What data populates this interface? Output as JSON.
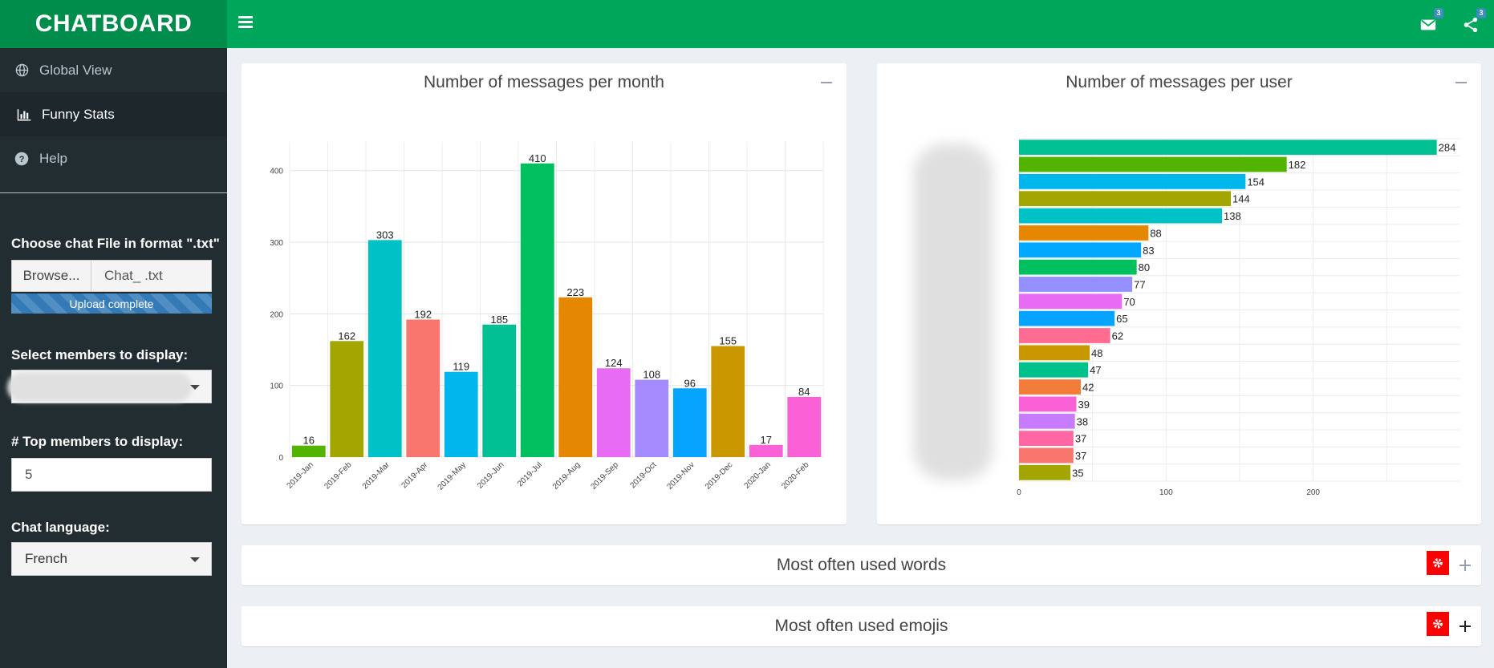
{
  "app": {
    "title": "CHATBOARD"
  },
  "header": {
    "mail_badge": "3",
    "share_badge": "3"
  },
  "sidebar": {
    "items": [
      {
        "label": "Global View",
        "icon": "globe-icon"
      },
      {
        "label": "Funny Stats",
        "icon": "bar-chart-icon"
      },
      {
        "label": "Help",
        "icon": "question-circle-icon"
      }
    ],
    "file_label": "Choose chat File in format \".txt\"",
    "browse_label": "Browse...",
    "file_name": "Chat_       .txt",
    "upload_status": "Upload complete",
    "members_label": "Select members to display:",
    "top_members_label": "# Top members to display:",
    "top_members_value": "5",
    "language_label": "Chat language:",
    "language_value": "French"
  },
  "boxes": {
    "month_title": "Number of messages per month",
    "user_title": "Number of messages per user",
    "words_title": "Most often used words",
    "emojis_title": "Most often used emojis"
  },
  "colors": {
    "header": "#00a65a",
    "logo": "#008d4c",
    "sidebar": "#222d32",
    "gear": "#ff0000"
  },
  "chart_data": [
    {
      "type": "bar",
      "title": "Number of messages per month",
      "categories": [
        "2019-Jan",
        "2019-Feb",
        "2019-Mar",
        "2019-Apr",
        "2019-May",
        "2019-Jun",
        "2019-Jul",
        "2019-Aug",
        "2019-Sep",
        "2019-Oct",
        "2019-Nov",
        "2019-Dec",
        "2020-Jan",
        "2020-Feb"
      ],
      "values": [
        16,
        162,
        303,
        192,
        119,
        185,
        410,
        223,
        124,
        108,
        96,
        155,
        17,
        84
      ],
      "colors": [
        "#53b400",
        "#a3a500",
        "#00c1c6",
        "#f8766d",
        "#00b6eb",
        "#00c094",
        "#00bf5e",
        "#e58700",
        "#e76bf3",
        "#a58aff",
        "#06a4ff",
        "#c99800",
        "#fb61d7",
        "#fb61d7"
      ],
      "yticks": [
        0,
        100,
        200,
        300,
        400
      ],
      "ylim": [
        0,
        440
      ],
      "grid": true
    },
    {
      "type": "bar",
      "orientation": "horizontal",
      "title": "Number of messages per user",
      "values": [
        284,
        182,
        154,
        144,
        138,
        88,
        83,
        80,
        77,
        70,
        65,
        62,
        48,
        47,
        42,
        39,
        38,
        37,
        37,
        35
      ],
      "colors": [
        "#00c094",
        "#53b400",
        "#00b6eb",
        "#a3a500",
        "#00c1c6",
        "#e58700",
        "#00a9ff",
        "#00bf5e",
        "#9590ff",
        "#e76bf3",
        "#06a4ff",
        "#ff6c91",
        "#c99800",
        "#00c08b",
        "#f27d3a",
        "#fb61d7",
        "#c77cff",
        "#ff67a4",
        "#f8766d",
        "#a3a500"
      ],
      "xticks": [
        0,
        100,
        200
      ],
      "xlim": [
        0,
        300
      ],
      "grid": true
    }
  ]
}
